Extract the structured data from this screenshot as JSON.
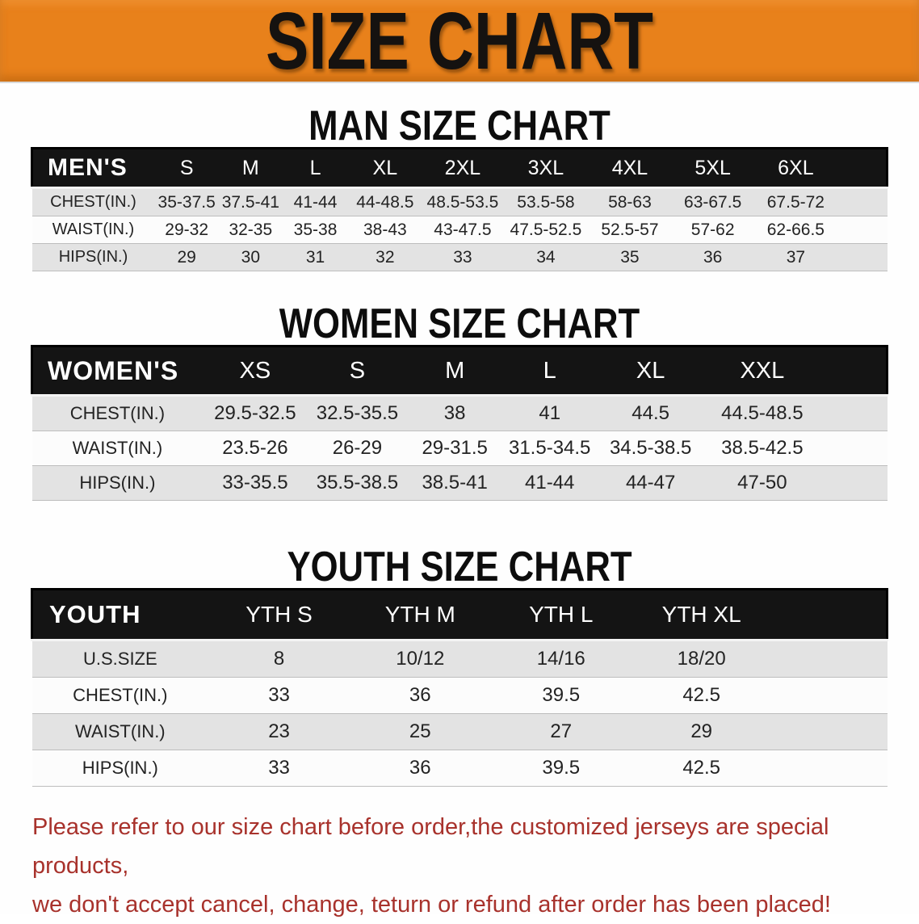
{
  "banner": {
    "title": "SIZE CHART"
  },
  "colors": {
    "banner_orange": "#e8811b",
    "header_black": "#141414",
    "stripe_gray": "#e3e3e3",
    "note_red": "#a8322c"
  },
  "sections": [
    {
      "title": "MAN SIZE CHART",
      "header_label": "MEN'S",
      "columns": [
        "S",
        "M",
        "L",
        "XL",
        "2XL",
        "3XL",
        "4XL",
        "5XL",
        "6XL"
      ],
      "rows": [
        {
          "label": "CHEST(IN.)",
          "values": [
            "35-37.5",
            "37.5-41",
            "41-44",
            "44-48.5",
            "48.5-53.5",
            "53.5-58",
            "58-63",
            "63-67.5",
            "67.5-72"
          ]
        },
        {
          "label": "WAIST(IN.)",
          "values": [
            "29-32",
            "32-35",
            "35-38",
            "38-43",
            "43-47.5",
            "47.5-52.5",
            "52.5-57",
            "57-62",
            "62-66.5"
          ]
        },
        {
          "label": "HIPS(IN.)",
          "values": [
            "29",
            "30",
            "31",
            "32",
            "33",
            "34",
            "35",
            "36",
            "37"
          ]
        }
      ]
    },
    {
      "title": "WOMEN SIZE CHART",
      "header_label": "WOMEN'S",
      "columns": [
        "XS",
        "S",
        "M",
        "L",
        "XL",
        "XXL"
      ],
      "rows": [
        {
          "label": "CHEST(IN.)",
          "values": [
            "29.5-32.5",
            "32.5-35.5",
            "38",
            "41",
            "44.5",
            "44.5-48.5"
          ]
        },
        {
          "label": "WAIST(IN.)",
          "values": [
            "23.5-26",
            "26-29",
            "29-31.5",
            "31.5-34.5",
            "34.5-38.5",
            "38.5-42.5"
          ]
        },
        {
          "label": "HIPS(IN.)",
          "values": [
            "33-35.5",
            "35.5-38.5",
            "38.5-41",
            "41-44",
            "44-47",
            "47-50"
          ]
        }
      ]
    },
    {
      "title": "YOUTH SIZE CHART",
      "header_label": "YOUTH",
      "columns": [
        "YTH S",
        "YTH M",
        "YTH L",
        "YTH XL"
      ],
      "rows": [
        {
          "label": "U.S.SIZE",
          "values": [
            "8",
            "10/12",
            "14/16",
            "18/20"
          ]
        },
        {
          "label": "CHEST(IN.)",
          "values": [
            "33",
            "36",
            "39.5",
            "42.5"
          ]
        },
        {
          "label": "WAIST(IN.)",
          "values": [
            "23",
            "25",
            "27",
            "29"
          ]
        },
        {
          "label": "HIPS(IN.)",
          "values": [
            "33",
            "36",
            "39.5",
            "42.5"
          ]
        }
      ]
    }
  ],
  "footer": {
    "lines": [
      "Please refer to our size chart before order,the customized jerseys are special products,",
      "we don't accept cancel, change, teturn or refund after order has been placed!"
    ]
  }
}
